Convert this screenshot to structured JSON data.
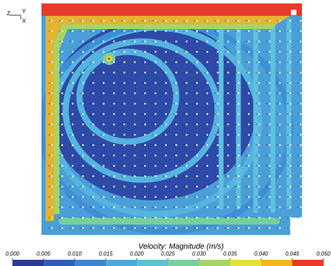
{
  "chart_data": {
    "type": "contour",
    "title": "Velocity: Magnitude (m/s)",
    "axis_triad": {
      "z": "Z",
      "y": "Y",
      "x": "X"
    },
    "clim": [
      0,
      0.05
    ],
    "cticks": [
      {
        "value": 0,
        "label": "0.000"
      },
      {
        "value": 0.005,
        "label": "0.005"
      },
      {
        "value": 0.01,
        "label": "0.010"
      },
      {
        "value": 0.015,
        "label": "0.015"
      },
      {
        "value": 0.02,
        "label": "0.020"
      },
      {
        "value": 0.025,
        "label": "0.025"
      },
      {
        "value": 0.03,
        "label": "0.030"
      },
      {
        "value": 0.035,
        "label": "0.035"
      },
      {
        "value": 0.04,
        "label": "0.040"
      },
      {
        "value": 0.045,
        "label": "0.045"
      },
      {
        "value": 0.05,
        "label": "0.050"
      }
    ],
    "colormap": [
      "#2b3a92",
      "#2e5fb6",
      "#3a86cf",
      "#4ba9dc",
      "#5ec1cf",
      "#77cf9c",
      "#a7d563",
      "#e3e23a",
      "#f6b51f",
      "#e8392a"
    ]
  }
}
